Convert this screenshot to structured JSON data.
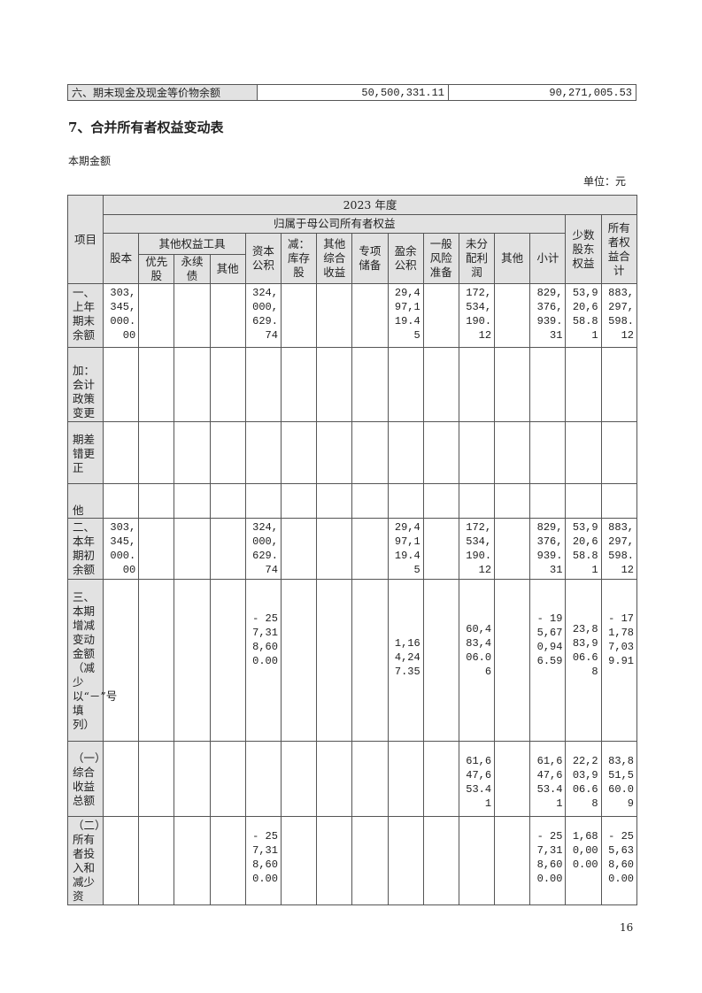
{
  "cash_row": {
    "label": "六、期末现金及现金等价物余额",
    "current": "50,500,331.11",
    "previous": "90,271,005.53"
  },
  "section_title": "7、合并所有者权益变动表",
  "period_label": "本期金额",
  "unit_label": "单位：元",
  "header": {
    "item": "项目",
    "year": "2023 年度",
    "parent_equity": "归属于母公司所有者权益",
    "other_equity_tools": "其他权益工具",
    "minority": "少数股东权益",
    "total": "所有者权益合计",
    "columns": [
      "股本",
      "优先股",
      "永续债",
      "其他",
      "资本公积",
      "减：库存股",
      "其他综合收益",
      "专项储备",
      "盈余公积",
      "一般风险准备",
      "未分配利润",
      "其他",
      "小计",
      "少数股东权益",
      "所有者权益合计"
    ]
  },
  "rows": [
    {
      "label": "一、上年期末余额",
      "valign": "top",
      "values": [
        "303,345,000.00",
        "",
        "",
        "",
        "324,000,629.74",
        "",
        "",
        "",
        "29,497,119.45",
        "",
        "172,534,190.12",
        "",
        "829,376,939.31",
        "53,920,658.81",
        "883,297,598.12"
      ]
    },
    {
      "label": "　加：会计政策变更",
      "valign": "top",
      "values": [
        "",
        "",
        "",
        "",
        "",
        "",
        "",
        "",
        "",
        "",
        "",
        "",
        "",
        "",
        ""
      ]
    },
    {
      "label": "期差错更正",
      "valign": "middle",
      "values": [
        "",
        "",
        "",
        "",
        "",
        "",
        "",
        "",
        "",
        "",
        "",
        "",
        "",
        "",
        ""
      ]
    },
    {
      "label": "他",
      "valign": "bottom",
      "values": [
        "",
        "",
        "",
        "",
        "",
        "",
        "",
        "",
        "",
        "",
        "",
        "",
        "",
        "",
        ""
      ]
    },
    {
      "label": "二、本年期初余额",
      "valign": "top",
      "values": [
        "303,345,000.00",
        "",
        "",
        "",
        "324,000,629.74",
        "",
        "",
        "",
        "29,497,119.45",
        "",
        "172,534,190.12",
        "",
        "829,376,939.31",
        "53,920,658.81",
        "883,297,598.12"
      ]
    },
    {
      "label": "三、本期增减变动金额（减少以“－”号填列）",
      "valign": "middle",
      "values": [
        "",
        "",
        "",
        "",
        "-257,318,600.00",
        "",
        "",
        "",
        "1,164,247.35",
        "",
        "60,483,406.06",
        "",
        "-195,670,946.59",
        "23,883,906.68",
        "-171,787,039.91"
      ]
    },
    {
      "label": "（一）综合收益总额",
      "valign": "middle",
      "values": [
        "",
        "",
        "",
        "",
        "",
        "",
        "",
        "",
        "",
        "",
        "61,647,653.41",
        "",
        "61,647,653.41",
        "22,203,906.68",
        "83,851,560.09"
      ]
    },
    {
      "label": "（二）所有者投入和减少资",
      "valign": "top",
      "values": [
        "",
        "",
        "",
        "",
        "-257,318,600.00",
        "",
        "",
        "",
        "",
        "",
        "",
        "",
        "-257,318,600.00",
        "1,680,000.00",
        "-255,638,600.00"
      ]
    }
  ],
  "page_number": "16"
}
